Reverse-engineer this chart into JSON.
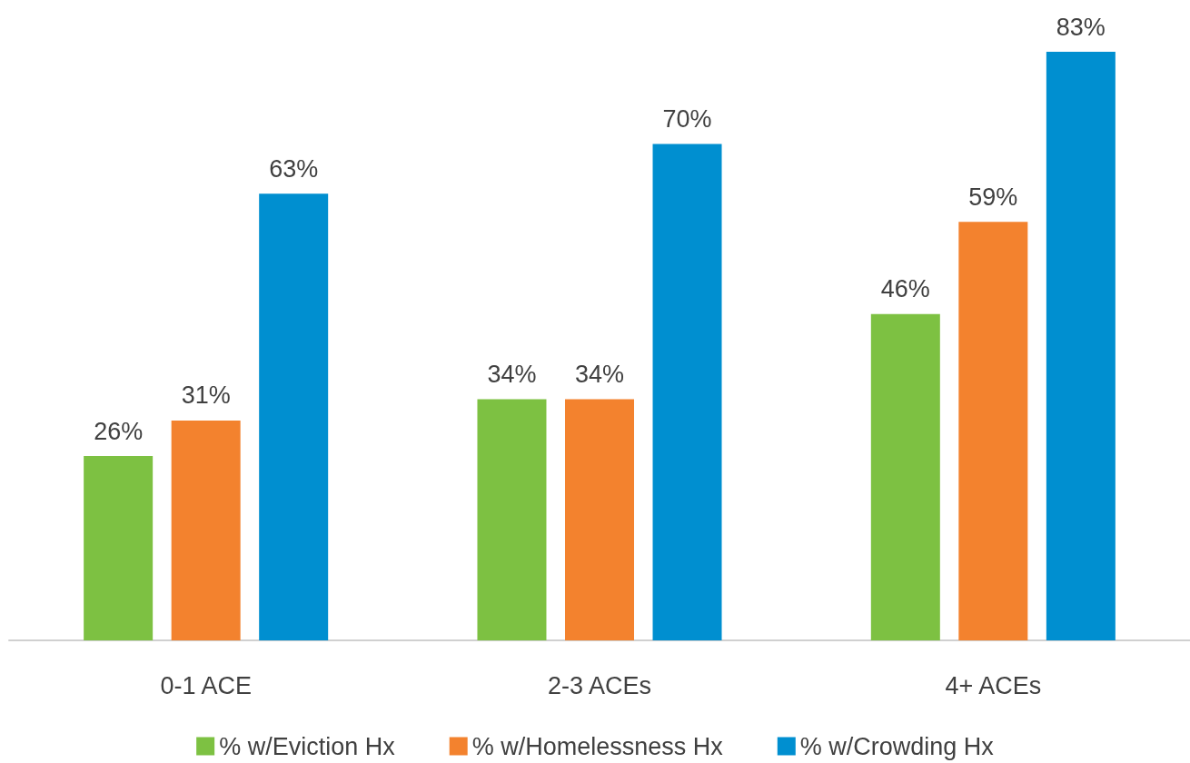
{
  "chart_data": {
    "type": "bar",
    "categories": [
      "0-1 ACE",
      "2-3 ACEs",
      "4+ ACEs"
    ],
    "series": [
      {
        "name": "% w/Eviction Hx",
        "color": "#7dc142",
        "values": [
          26,
          34,
          46
        ],
        "value_labels": [
          "26%",
          "34%",
          "46%"
        ]
      },
      {
        "name": "% w/Homelessness Hx",
        "color": "#f3822e",
        "values": [
          31,
          34,
          59
        ],
        "value_labels": [
          "31%",
          "34%",
          "59%"
        ]
      },
      {
        "name": "% w/Crowding Hx",
        "color": "#008fd0",
        "values": [
          63,
          70,
          83
        ],
        "value_labels": [
          "63%",
          "70%",
          "83%"
        ]
      }
    ],
    "legend": "bottom"
  }
}
